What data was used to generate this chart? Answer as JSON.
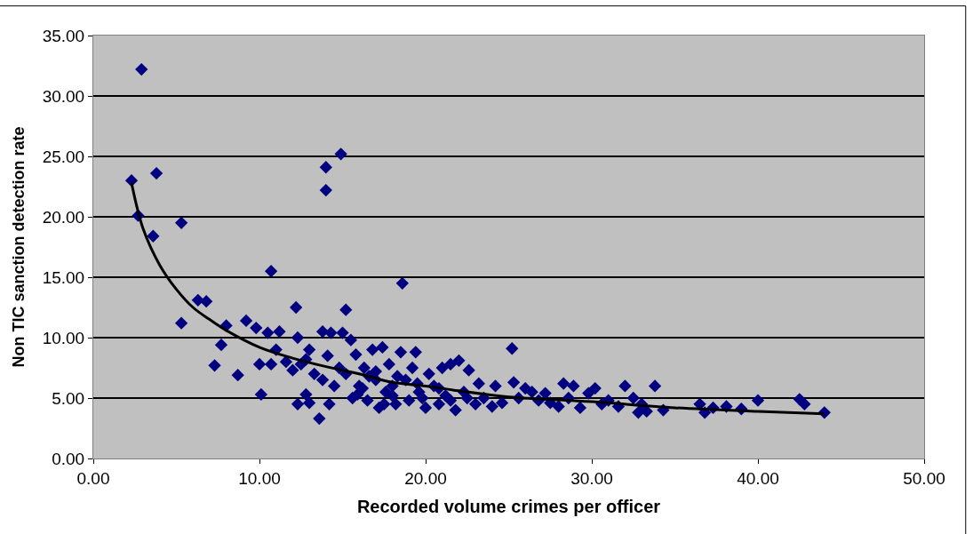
{
  "chart_data": {
    "type": "scatter",
    "xlabel": "Recorded volume crimes per officer",
    "ylabel": "Non TIC sanction detection rate",
    "xlim": [
      0,
      50
    ],
    "ylim": [
      0,
      35
    ],
    "xticks": [
      {
        "value": 0,
        "label": "0.00"
      },
      {
        "value": 10,
        "label": "10.00"
      },
      {
        "value": 20,
        "label": "20.00"
      },
      {
        "value": 30,
        "label": "30.00"
      },
      {
        "value": 40,
        "label": "40.00"
      },
      {
        "value": 50,
        "label": "50.00"
      }
    ],
    "yticks": [
      {
        "value": 0,
        "label": "0.00"
      },
      {
        "value": 5,
        "label": "5.00"
      },
      {
        "value": 10,
        "label": "10.00"
      },
      {
        "value": 15,
        "label": "15.00"
      },
      {
        "value": 20,
        "label": "20.00"
      },
      {
        "value": 25,
        "label": "25.00"
      },
      {
        "value": 30,
        "label": "30.00"
      },
      {
        "value": 35,
        "label": "35.00"
      }
    ],
    "grid": "y",
    "marker": "diamond",
    "series": [
      {
        "color": "#000080",
        "x": [
          2.9,
          2.3,
          3.8,
          2.7,
          3.6,
          5.3,
          5.3,
          6.3,
          6.8,
          7.3,
          7.7,
          8.0,
          8.7,
          9.2,
          9.8,
          10.0,
          10.1,
          10.5,
          10.7,
          10.7,
          11.0,
          11.2,
          11.6,
          12.0,
          12.2,
          12.3,
          12.3,
          12.8,
          12.8,
          13.0,
          13.3,
          13.6,
          13.8,
          14.0,
          14.0,
          14.1,
          14.2,
          14.3,
          14.5,
          14.9,
          15.0,
          15.2,
          15.5,
          15.2,
          15.6,
          15.8,
          16.0,
          16.3,
          16.5,
          16.8,
          17.0,
          17.2,
          17.4,
          17.6,
          17.8,
          18.0,
          18.2,
          18.5,
          18.6,
          18.8,
          19.0,
          19.2,
          19.4,
          19.6,
          20.0,
          20.2,
          20.5,
          20.8,
          21.0,
          21.2,
          21.5,
          21.8,
          22.0,
          22.3,
          22.6,
          23.0,
          23.2,
          23.5,
          24.0,
          24.2,
          24.6,
          25.2,
          25.3,
          25.6,
          26.0,
          26.4,
          26.8,
          27.2,
          27.5,
          28.0,
          28.3,
          28.6,
          28.9,
          29.3,
          29.8,
          30.2,
          30.6,
          31.0,
          31.6,
          32.0,
          32.5,
          32.8,
          33.0,
          33.3,
          33.8,
          34.3,
          36.5,
          36.8,
          37.3,
          38.1,
          39.0,
          40.0,
          42.5,
          42.8,
          44.0,
          16.2,
          17.0,
          18.3,
          19.5,
          20.8,
          21.5,
          22.5,
          18.0,
          17.5,
          16.6,
          19.8,
          15.9,
          14.8,
          13.8,
          13.0,
          12.5
        ],
        "values": [
          32.2,
          23.0,
          23.6,
          20.1,
          18.4,
          19.5,
          11.2,
          13.1,
          13.0,
          7.7,
          9.4,
          11.0,
          6.9,
          11.4,
          10.8,
          7.8,
          5.3,
          10.4,
          15.5,
          7.8,
          9.0,
          10.5,
          8.0,
          7.3,
          12.5,
          10.0,
          4.5,
          5.3,
          8.2,
          4.6,
          7.0,
          3.3,
          10.5,
          24.1,
          22.2,
          8.5,
          4.5,
          10.4,
          6.0,
          25.2,
          10.4,
          12.3,
          9.8,
          7.0,
          5.0,
          8.6,
          6.0,
          7.5,
          4.8,
          9.0,
          6.5,
          4.2,
          9.2,
          5.5,
          7.8,
          6.0,
          4.5,
          8.8,
          14.5,
          6.5,
          4.8,
          7.5,
          8.8,
          5.5,
          4.2,
          7.0,
          6.0,
          4.5,
          7.5,
          5.2,
          7.8,
          4.0,
          8.1,
          5.5,
          7.3,
          4.5,
          6.2,
          5.0,
          4.3,
          6.0,
          4.6,
          9.1,
          6.3,
          5.0,
          5.8,
          5.5,
          4.8,
          5.4,
          4.6,
          4.3,
          6.2,
          5.0,
          6.0,
          4.2,
          5.4,
          5.8,
          4.5,
          4.8,
          4.3,
          6.0,
          5.0,
          3.8,
          4.5,
          3.9,
          6.0,
          4.0,
          4.5,
          3.8,
          4.2,
          4.3,
          4.1,
          4.8,
          4.9,
          4.5,
          3.8,
          5.8,
          7.2,
          6.8,
          6.2,
          5.8,
          4.8,
          5.0,
          5.2,
          4.5,
          6.8,
          5.0,
          5.3,
          7.5,
          6.5,
          9.0,
          7.8
        ]
      },
      {
        "type": "line",
        "color": "#000000",
        "marker": "none",
        "line_style": "solid",
        "x": [
          2.3,
          3,
          4,
          5,
          6,
          7,
          8,
          10,
          12,
          14,
          16,
          18,
          20,
          22,
          25,
          30,
          35,
          40,
          44
        ],
        "values": [
          22.8,
          19,
          16,
          14,
          12.5,
          11.5,
          10.6,
          9.2,
          8.3,
          7.6,
          7.0,
          6.3,
          6.0,
          5.6,
          5.1,
          4.7,
          4.2,
          3.9,
          3.7
        ]
      }
    ]
  }
}
